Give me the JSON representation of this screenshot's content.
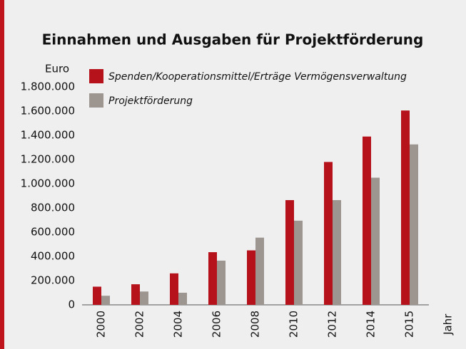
{
  "chart_data": {
    "type": "bar",
    "title": "Einnahmen und Ausgaben für Projektförderung",
    "y_label": "Euro",
    "x_label": "Jahr",
    "categories": [
      "2000",
      "2002",
      "2004",
      "2006",
      "2008",
      "2010",
      "2012",
      "2014",
      "2015"
    ],
    "series": [
      {
        "name": "Spenden/Kooperationsmittel/Erträge Vermögensverwaltung",
        "color": "#b5121b",
        "values": [
          150000,
          170000,
          260000,
          435000,
          450000,
          865000,
          1180000,
          1390000,
          1605000
        ]
      },
      {
        "name": "Projektförderung",
        "color": "#9d958f",
        "values": [
          75000,
          110000,
          100000,
          365000,
          555000,
          695000,
          865000,
          1050000,
          1325000
        ]
      }
    ],
    "ylim": [
      0,
      1800000
    ],
    "yticks": [
      0,
      {
        "value": 200000,
        "label": "200.000"
      },
      {
        "value": 400000,
        "label": "400.000"
      },
      {
        "value": 600000,
        "label": "600.000"
      },
      {
        "value": 800000,
        "label": "800.000"
      },
      {
        "value": 1000000,
        "label": "1.000.000"
      },
      {
        "value": 1200000,
        "label": "1.200.000"
      },
      {
        "value": 1400000,
        "label": "1.400.000"
      },
      {
        "value": 1600000,
        "label": "1.600.000"
      },
      {
        "value": 1800000,
        "label": "1.800.000"
      }
    ],
    "grid": false,
    "legend": "top-left"
  }
}
